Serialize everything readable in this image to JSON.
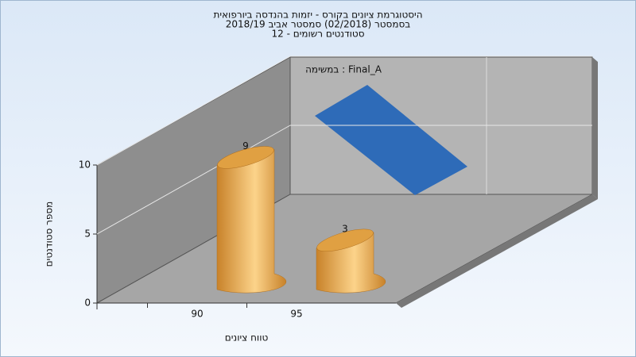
{
  "chart_data": {
    "type": "bar3d",
    "title_lines": [
      "היסטוגרמת ציונים בקורס - יזמות בהנדסה ביורפואית",
      "בסמסטר  (02/2018)  סמסטר אביב 2018/19",
      "סטודנטים רשומים - 12"
    ],
    "legend_label": "במשימה : Final_A",
    "x_label": "טווח ציונים",
    "y_label": "מספר סטודנטים",
    "categories": [
      "90",
      "95"
    ],
    "series": [
      {
        "name": "Final_A",
        "color": "#e0a042",
        "values": [
          9,
          3
        ]
      }
    ],
    "legend_color": "#2e6bb8",
    "ylim": [
      0,
      10
    ],
    "yticks": [
      0,
      5,
      10
    ],
    "grid": true
  }
}
